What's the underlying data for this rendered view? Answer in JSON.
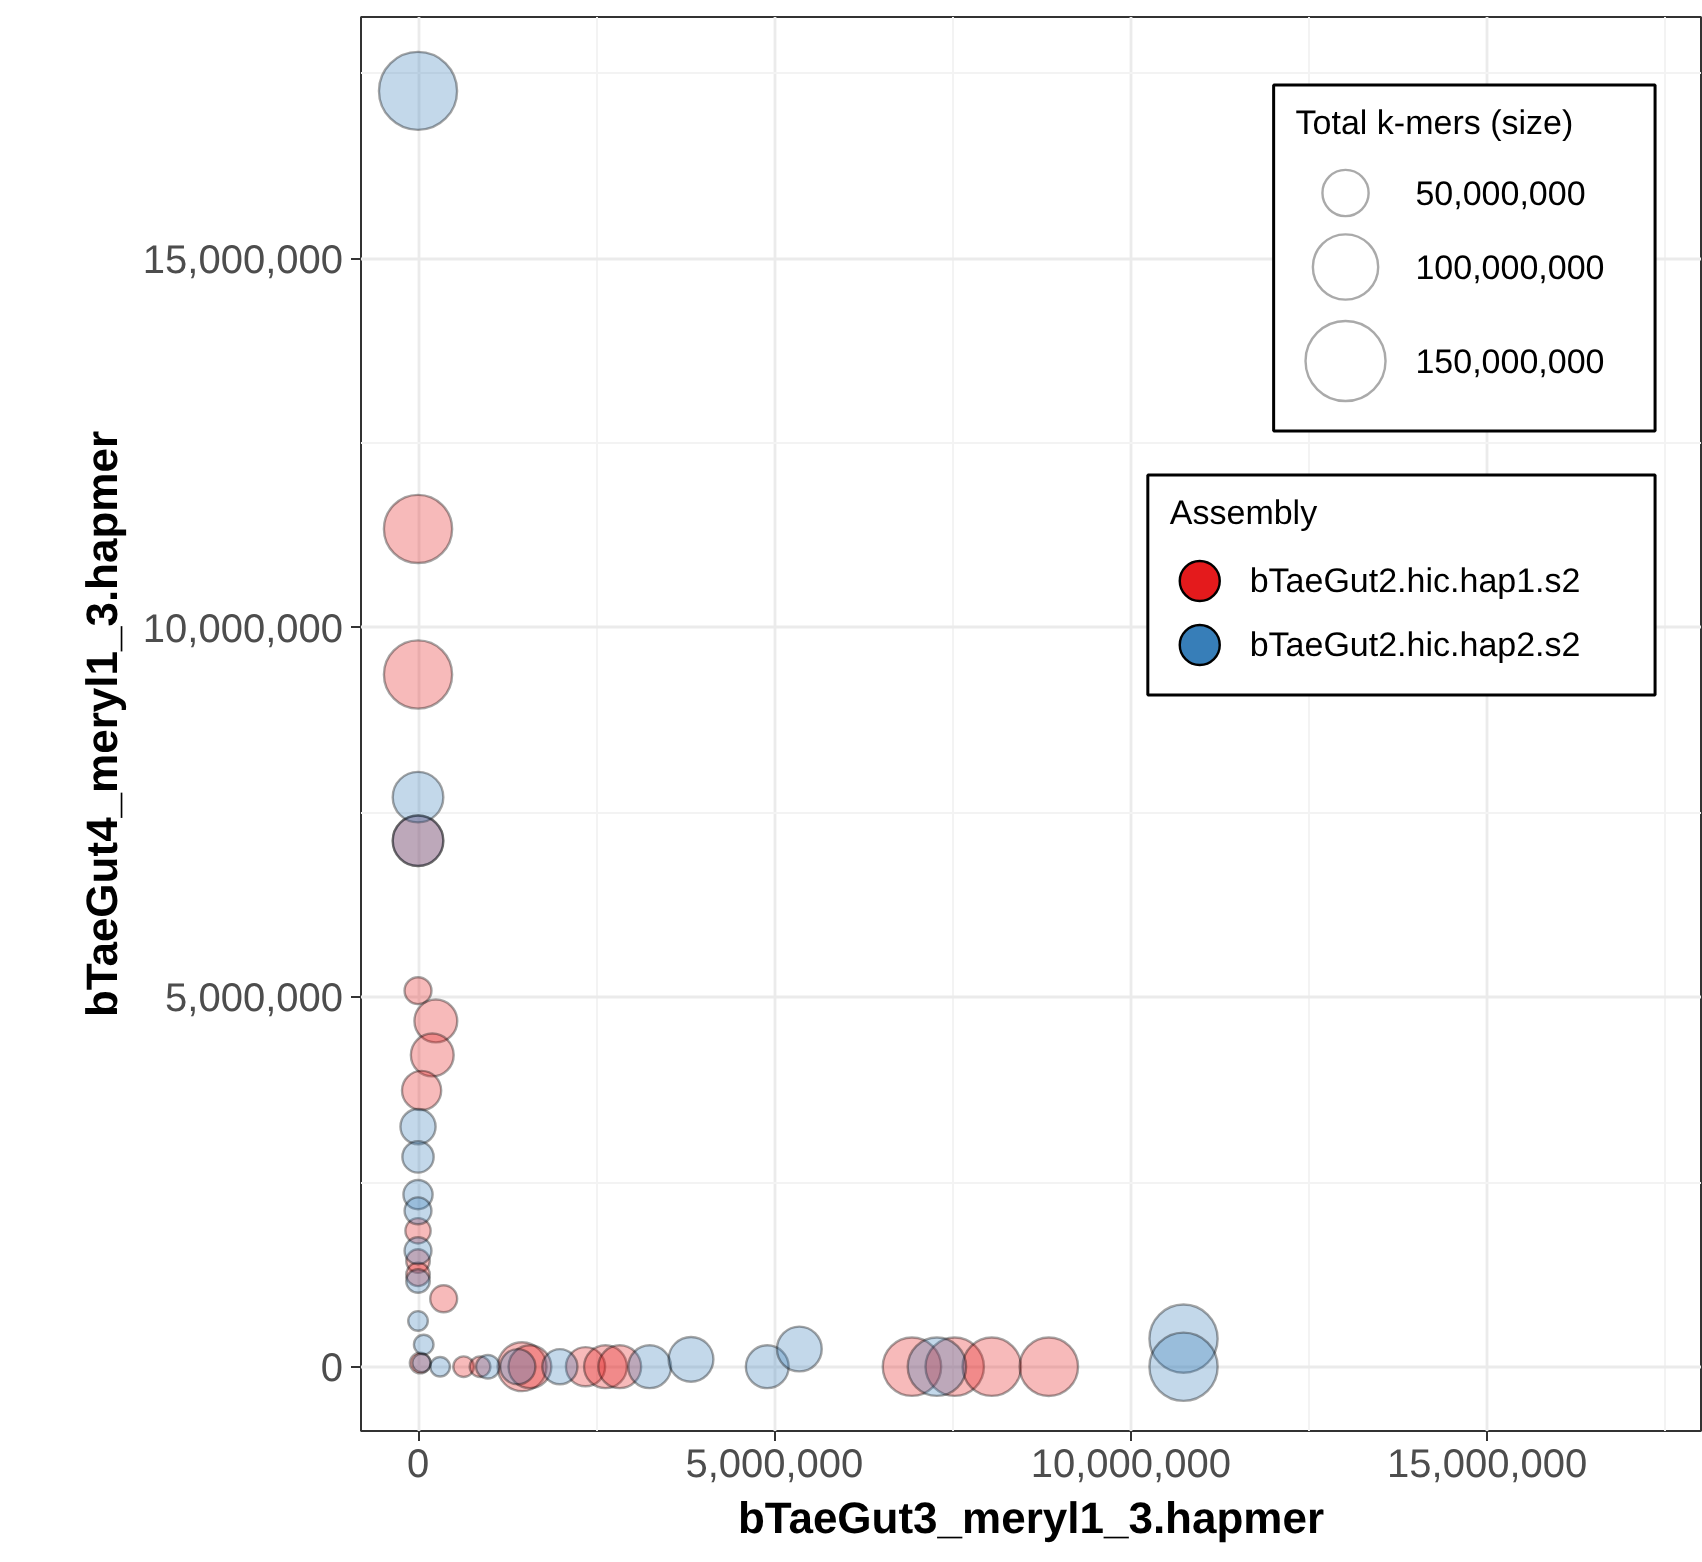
{
  "chart_data": {
    "type": "bubble",
    "xlabel": "bTaeGut3_meryl1_3.hapmer",
    "ylabel": "bTaeGut4_meryl1_3.hapmer",
    "legend_title": "Assembly",
    "annotations": [
      "Total k-mers (size)"
    ],
    "xlim": [
      -800000,
      18000000
    ],
    "ylim": [
      -870000,
      18270000
    ],
    "xticks": [
      {
        "value": 0,
        "label": "0"
      },
      {
        "value": 5000000,
        "label": "5,000,000"
      },
      {
        "value": 10000000,
        "label": "10,000,000"
      },
      {
        "value": 15000000,
        "label": "15,000,000"
      }
    ],
    "yticks": [
      {
        "value": 0,
        "label": "0"
      },
      {
        "value": 5000000,
        "label": "5,000,000"
      },
      {
        "value": 10000000,
        "label": "10,000,000"
      },
      {
        "value": 15000000,
        "label": "15,000,000"
      }
    ],
    "grid": true,
    "legend": "top right",
    "marker": "circle",
    "size_legend": [
      {
        "value": 50000000,
        "label": "50,000,000"
      },
      {
        "value": 100000000,
        "label": "100,000,000"
      },
      {
        "value": 150000000,
        "label": "150,000,000"
      }
    ],
    "series": [
      {
        "name": "bTaeGut2.hic.hap1.s2",
        "color": "#e41a1c",
        "x": [
          0,
          0,
          0,
          0,
          250000,
          200000,
          50000,
          0,
          0,
          0,
          360000,
          30000,
          640000,
          870000,
          1460000,
          1570000,
          2350000,
          2630000,
          2830000,
          6930000,
          7530000,
          8050000,
          8850000
        ],
        "values": [
          11340000,
          9370000,
          7120000,
          5090000,
          4680000,
          4220000,
          3740000,
          1840000,
          1430000,
          1250000,
          920000,
          50000,
          0,
          0,
          0,
          0,
          0,
          0,
          0,
          0,
          0,
          0,
          0
        ],
        "sizes": [
          109000000,
          109000000,
          60000000,
          17000000,
          43000000,
          43000000,
          36000000,
          15000000,
          13000000,
          13000000,
          17000000,
          10000000,
          10000000,
          10000000,
          56000000,
          43000000,
          36000000,
          43000000,
          43000000,
          80000000,
          80000000,
          80000000,
          80000000
        ]
      },
      {
        "name": "bTaeGut2.hic.hap2.s2",
        "color": "#377eb8",
        "x": [
          0,
          0,
          0,
          0,
          0,
          0,
          0,
          0,
          0,
          0,
          80000,
          50000,
          310000,
          980000,
          1400000,
          1990000,
          3250000,
          3830000,
          4900000,
          5350000,
          7280000,
          10740000,
          10740000
        ],
        "values": [
          17270000,
          7710000,
          7120000,
          3250000,
          2840000,
          2330000,
          2110000,
          1570000,
          1160000,
          620000,
          300000,
          50000,
          0,
          0,
          0,
          0,
          0,
          100000,
          0,
          240000,
          0,
          380000,
          0
        ],
        "sizes": [
          143000000,
          60000000,
          60000000,
          29000000,
          23000000,
          20000000,
          17000000,
          17000000,
          13000000,
          9000000,
          9000000,
          8000000,
          9000000,
          13000000,
          29000000,
          29000000,
          43000000,
          47000000,
          43000000,
          47000000,
          80000000,
          109000000,
          109000000
        ]
      }
    ]
  }
}
